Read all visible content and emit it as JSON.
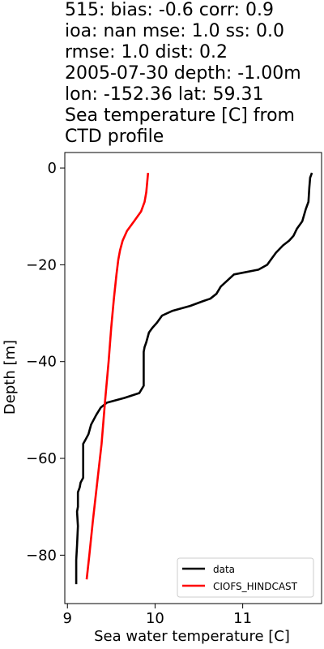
{
  "title_lines": [
    "515: bias: -0.6  corr: 0.9",
    "ioa: nan  mse: 1.0  ss: 0.0",
    "rmse: 1.0  dist: 0.2",
    "2005-07-30 depth: -1.00m",
    "lon: -152.36 lat: 59.31",
    "Sea temperature [C] from",
    "CTD profile"
  ],
  "chart_data": {
    "type": "line",
    "xlabel": "Sea water temperature [C]",
    "ylabel": "Depth [m]",
    "xlim": [
      8.97,
      11.9
    ],
    "ylim": [
      -90,
      3.2
    ],
    "xticks": [
      9,
      10,
      11
    ],
    "yticks": [
      0,
      -20,
      -40,
      -60,
      -80
    ],
    "xtick_labels": [
      "9",
      "10",
      "11"
    ],
    "ytick_labels": [
      "0",
      "−20",
      "−40",
      "−60",
      "−80"
    ],
    "grid": false,
    "legend_position": "lower-right",
    "series": [
      {
        "name": "data",
        "color": "#000000",
        "points": [
          [
            11.79,
            -1
          ],
          [
            11.77,
            -2
          ],
          [
            11.76,
            -4
          ],
          [
            11.75,
            -7
          ],
          [
            11.72,
            -8.5
          ],
          [
            11.68,
            -11
          ],
          [
            11.62,
            -12.5
          ],
          [
            11.58,
            -14
          ],
          [
            11.53,
            -15
          ],
          [
            11.46,
            -16
          ],
          [
            11.38,
            -17.5
          ],
          [
            11.32,
            -19
          ],
          [
            11.28,
            -20
          ],
          [
            11.18,
            -21
          ],
          [
            10.9,
            -22
          ],
          [
            10.84,
            -23
          ],
          [
            10.75,
            -24.5
          ],
          [
            10.7,
            -26
          ],
          [
            10.63,
            -27
          ],
          [
            10.55,
            -27.5
          ],
          [
            10.4,
            -28.5
          ],
          [
            10.2,
            -29.5
          ],
          [
            10.08,
            -30.5
          ],
          [
            10.02,
            -32
          ],
          [
            9.97,
            -33
          ],
          [
            9.93,
            -34
          ],
          [
            9.9,
            -36
          ],
          [
            9.88,
            -37
          ],
          [
            9.87,
            -38
          ],
          [
            9.87,
            -42
          ],
          [
            9.87,
            -45
          ],
          [
            9.82,
            -46.5
          ],
          [
            9.65,
            -47.5
          ],
          [
            9.45,
            -48.5
          ],
          [
            9.38,
            -49.5
          ],
          [
            9.33,
            -51
          ],
          [
            9.3,
            -52
          ],
          [
            9.27,
            -53
          ],
          [
            9.24,
            -55
          ],
          [
            9.21,
            -56
          ],
          [
            9.18,
            -57
          ],
          [
            9.18,
            -61
          ],
          [
            9.18,
            -64
          ],
          [
            9.15,
            -65
          ],
          [
            9.14,
            -66
          ],
          [
            9.12,
            -67
          ],
          [
            9.12,
            -70
          ],
          [
            9.11,
            -71
          ],
          [
            9.12,
            -74
          ],
          [
            9.11,
            -78
          ],
          [
            9.1,
            -81
          ],
          [
            9.1,
            -84
          ],
          [
            9.1,
            -86
          ]
        ]
      },
      {
        "name": "CIOFS_HINDCAST",
        "color": "#ff0000",
        "points": [
          [
            9.92,
            -1
          ],
          [
            9.91,
            -3
          ],
          [
            9.9,
            -5
          ],
          [
            9.88,
            -7
          ],
          [
            9.84,
            -9
          ],
          [
            9.76,
            -11
          ],
          [
            9.68,
            -13
          ],
          [
            9.63,
            -15
          ],
          [
            9.6,
            -17
          ],
          [
            9.58,
            -19
          ],
          [
            9.56,
            -22
          ],
          [
            9.53,
            -27
          ],
          [
            9.5,
            -33
          ],
          [
            9.47,
            -40
          ],
          [
            9.43,
            -48
          ],
          [
            9.39,
            -57
          ],
          [
            9.34,
            -65
          ],
          [
            9.29,
            -73
          ],
          [
            9.25,
            -80
          ],
          [
            9.22,
            -85
          ]
        ]
      }
    ]
  }
}
